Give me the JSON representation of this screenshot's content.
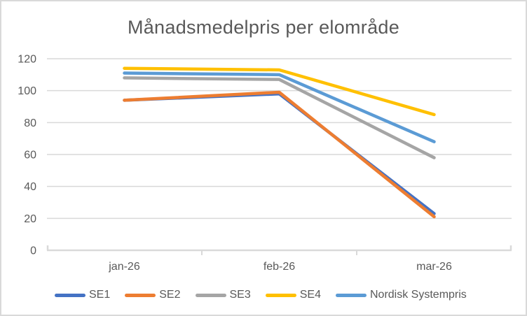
{
  "frame": {
    "background_color": "#ffffff",
    "border_color": "#d9d9d9"
  },
  "chart_data": {
    "type": "line",
    "title": "Månadsmedelpris per elområde",
    "categories": [
      "jan-26",
      "feb-26",
      "mar-26"
    ],
    "series": [
      {
        "name": "SE1",
        "color": "#4472C4",
        "values": [
          94,
          98,
          23
        ]
      },
      {
        "name": "SE2",
        "color": "#ED7D31",
        "values": [
          94,
          99,
          21
        ]
      },
      {
        "name": "SE3",
        "color": "#A5A5A5",
        "values": [
          108,
          107,
          58
        ]
      },
      {
        "name": "SE4",
        "color": "#FFC000",
        "values": [
          114,
          113,
          85
        ]
      },
      {
        "name": "Nordisk Systempris",
        "color": "#5B9BD5",
        "values": [
          111,
          110,
          68
        ]
      }
    ],
    "xlabel": "",
    "ylabel": "",
    "ylim": [
      0,
      120
    ],
    "yticks": [
      0,
      20,
      40,
      60,
      80,
      100,
      120
    ],
    "grid": true,
    "gridline_color": "#d9d9d9",
    "axis_line_color": "#d9d9d9",
    "text_color": "#595959",
    "legend_position": "bottom"
  }
}
